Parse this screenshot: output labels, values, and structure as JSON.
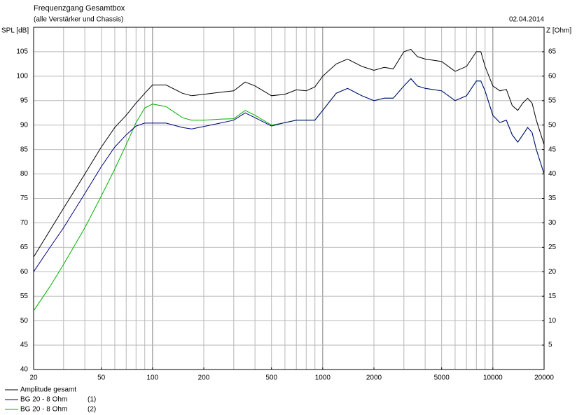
{
  "chart_data": {
    "type": "line",
    "title": "Frequenzgang Gesamtbox",
    "subtitle": "(alle Verstärker und Chassis)",
    "date": "02.04.2014",
    "y_label": "SPL [dB]",
    "y2_label": "Z [Ohm]",
    "log_x": true,
    "grid": true,
    "x": [
      20,
      25,
      30,
      40,
      50,
      60,
      70,
      80,
      90,
      100,
      120,
      150,
      170,
      200,
      250,
      300,
      350,
      400,
      500,
      600,
      700,
      800,
      900,
      1000,
      1200,
      1400,
      1700,
      2000,
      2300,
      2600,
      3000,
      3300,
      3600,
      4000,
      5000,
      6000,
      7000,
      8000,
      8500,
      9000,
      10000,
      11000,
      12000,
      13000,
      14000,
      15000,
      16000,
      17000,
      18000,
      20000
    ],
    "xlim": [
      20,
      20000
    ],
    "xticks": [
      20,
      50,
      100,
      200,
      500,
      1000,
      2000,
      5000,
      10000,
      20000
    ],
    "ylim": [
      40,
      110
    ],
    "yticks": [
      40,
      45,
      50,
      55,
      60,
      65,
      70,
      75,
      80,
      85,
      90,
      95,
      100,
      105
    ],
    "y2lim": [
      0,
      70
    ],
    "y2ticks": [
      5,
      10,
      15,
      20,
      25,
      30,
      35,
      40,
      45,
      50,
      55,
      60,
      65
    ],
    "series": [
      {
        "name": "Amplitude gesamt",
        "color": "#000000",
        "values": [
          63,
          68.5,
          73,
          80,
          85.5,
          89.5,
          92,
          94.5,
          96.5,
          98.2,
          98.2,
          96.5,
          96,
          96.3,
          96.7,
          97,
          98.8,
          98,
          96,
          96.3,
          97.2,
          97,
          97.8,
          100,
          102.5,
          103.5,
          102,
          101.2,
          101.8,
          101.5,
          105,
          105.5,
          104,
          103.5,
          103,
          101,
          102,
          105,
          105,
          102,
          98,
          97,
          97.3,
          94,
          93,
          94.5,
          95.5,
          94.5,
          91,
          86
        ]
      },
      {
        "name": "BG 20 - 8 Ohm",
        "channel": "(1)",
        "color": "#000080",
        "values": [
          60,
          65,
          69,
          76,
          81.5,
          85.5,
          88,
          89.8,
          90.4,
          90.4,
          90.4,
          89.5,
          89.2,
          89.7,
          90.4,
          91,
          92.5,
          91.5,
          89.8,
          90.5,
          91,
          91,
          91,
          93,
          96.5,
          97.5,
          96,
          95,
          95.5,
          95.5,
          98,
          99.5,
          98,
          97.5,
          97,
          95,
          96,
          99,
          99,
          97,
          92,
          90.5,
          91,
          88,
          86.5,
          88,
          89.5,
          88.5,
          85,
          80
        ]
      },
      {
        "name": "BG 20 - 8 Ohm",
        "channel": "(2)",
        "color": "#00b000",
        "values": [
          52,
          57,
          61.5,
          69,
          75.5,
          81,
          86,
          90.5,
          93.5,
          94.3,
          93.8,
          91.5,
          91,
          91,
          91.2,
          91.3,
          93,
          92,
          90,
          90.5,
          91,
          91,
          91,
          93,
          96.5,
          97.5,
          96,
          95,
          95.5,
          95.5,
          98,
          99.5,
          98,
          97.5,
          97,
          95,
          96,
          99,
          99,
          97,
          92,
          90.5,
          91,
          88,
          86.5,
          88,
          89.5,
          88.5,
          85,
          80
        ]
      }
    ]
  }
}
